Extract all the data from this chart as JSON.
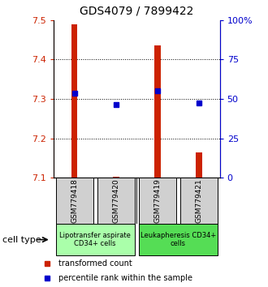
{
  "title": "GDS4079 / 7899422",
  "samples": [
    "GSM779418",
    "GSM779420",
    "GSM779419",
    "GSM779421"
  ],
  "red_values": [
    7.49,
    7.103,
    7.435,
    7.165
  ],
  "blue_values": [
    7.315,
    7.285,
    7.32,
    7.29
  ],
  "ylim": [
    7.1,
    7.5
  ],
  "yticks_left": [
    7.1,
    7.2,
    7.3,
    7.4,
    7.5
  ],
  "yticks_right": [
    0,
    25,
    50,
    75,
    100
  ],
  "cell_types": [
    {
      "label": "Lipotransfer aspirate\nCD34+ cells",
      "color": "#aaffaa",
      "samples": [
        0,
        1
      ]
    },
    {
      "label": "Leukapheresis CD34+\ncells",
      "color": "#55dd55",
      "samples": [
        2,
        3
      ]
    }
  ],
  "bar_color": "#cc2200",
  "dot_color": "#0000cc",
  "legend_bar_label": "transformed count",
  "legend_dot_label": "percentile rank within the sample",
  "cell_type_label": "cell type",
  "sample_box_color": "#d0d0d0",
  "bar_width": 0.15,
  "fig_width": 3.3,
  "fig_height": 3.54,
  "dpi": 100
}
